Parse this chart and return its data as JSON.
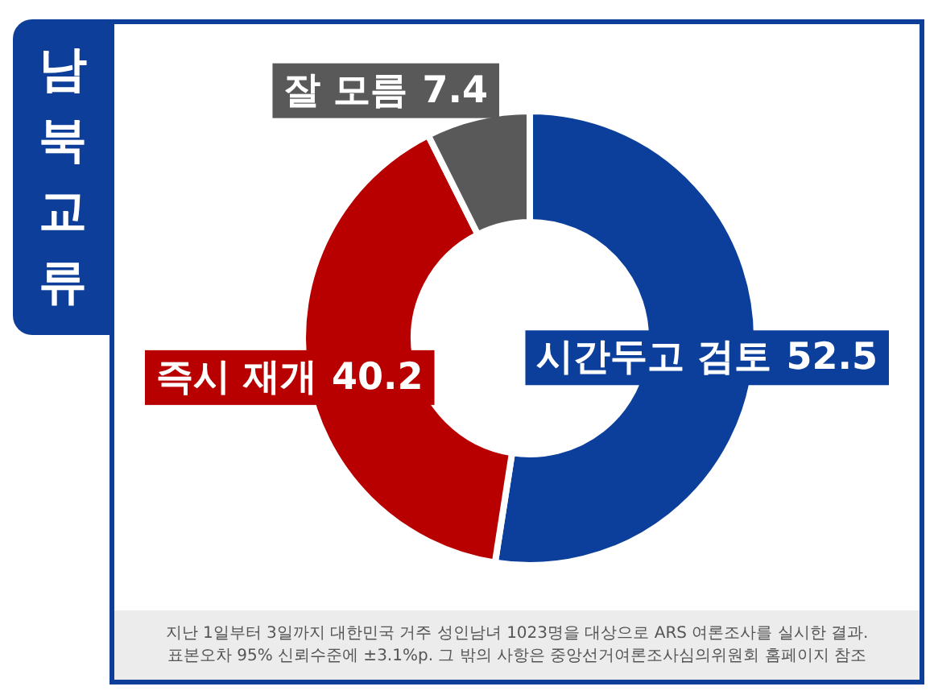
{
  "chart_data": {
    "type": "donut",
    "title": "남북교류",
    "categories": [
      "시간두고 검토",
      "즉시 재개",
      "잘 모름"
    ],
    "values": [
      52.5,
      40.2,
      7.4
    ],
    "colors": [
      "#0b3f9b",
      "#b80000",
      "#595959"
    ],
    "data_labels": true,
    "annotations": [
      "지난 1일부터 3일까지 대한민국 거주 성인남녀 1023명을 대상으로 ARS 여론조사를 실시한 결과. 표본오차 95% 신뢰수준에 ±3.1%p. 그 밖의 사항은 중앙선거여론조사심의위원회 홈페이지 참조"
    ]
  }
}
